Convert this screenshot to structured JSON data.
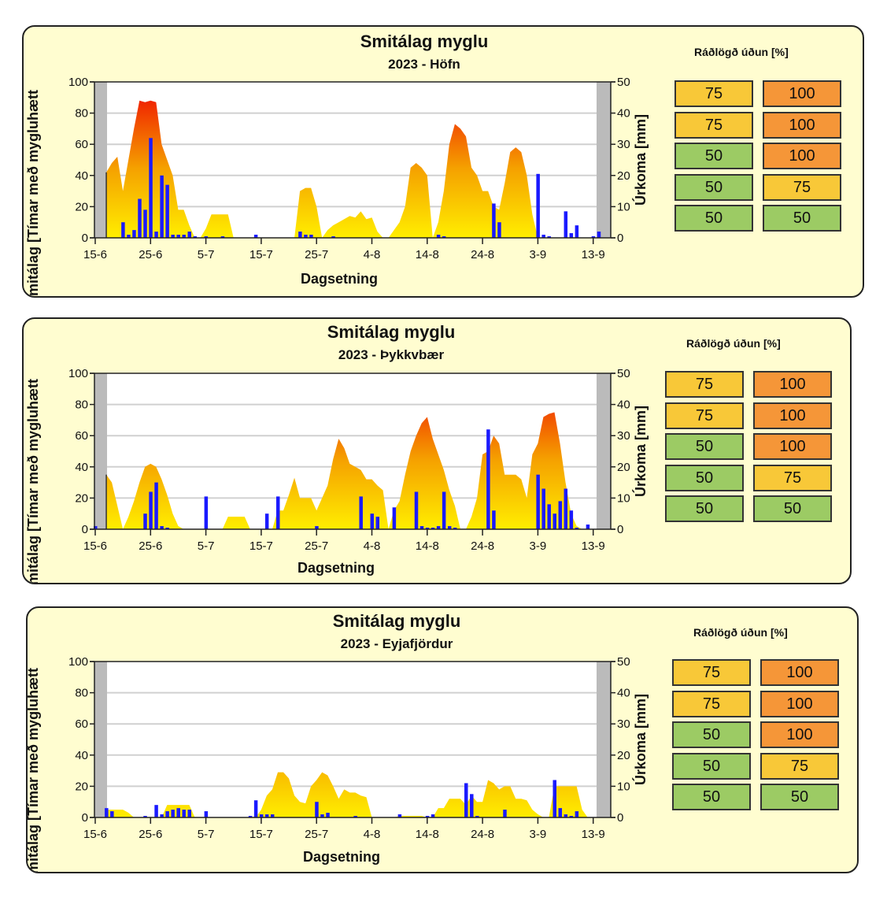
{
  "colors": {
    "panel_bg": "#fffdd0",
    "bar": "#1a1aff",
    "area_low": "#ffee00",
    "area_mid": "#f5a000",
    "area_high": "#f02000",
    "legend_yellow": "#f8c838",
    "legend_orange": "#f59638",
    "legend_green": "#9ccb64",
    "grey_band": "#bbbbbb"
  },
  "legend_title": "Ráðlögð úðun [%]",
  "chart_data": [
    {
      "type": "bar+area",
      "title": "Smitálag myglu",
      "subtitle": "2023 - Höfn",
      "xlabel": "Dagsetning",
      "ylabel": "Smitálag [Tímar með mygluhætt",
      "y2label": "Úrkoma [mm]",
      "ylim": [
        0,
        100
      ],
      "y2lim": [
        0,
        50
      ],
      "yticks": [
        "0",
        "20",
        "40",
        "60",
        "80",
        "100"
      ],
      "y2ticks": [
        "0",
        "10",
        "20",
        "30",
        "40",
        "50"
      ],
      "xticks": [
        "15-6",
        "25-6",
        "5-7",
        "15-7",
        "25-7",
        "4-8",
        "14-8",
        "24-8",
        "3-9",
        "13-9"
      ],
      "x_start_day_label": "15-6",
      "area_series": {
        "name": "Smitálag",
        "days": [
          2,
          3,
          4,
          5,
          6,
          7,
          8,
          9,
          10,
          11,
          12,
          13,
          14,
          15,
          16,
          17,
          18,
          19,
          20,
          21,
          22,
          23,
          24,
          25,
          26,
          27,
          28,
          29,
          30,
          31,
          32,
          33,
          34,
          35,
          36,
          37,
          38,
          39,
          40,
          41,
          42,
          43,
          44,
          45,
          46,
          47,
          48,
          49,
          50,
          51,
          52,
          53,
          54,
          55,
          56,
          57,
          58,
          59,
          60,
          61,
          62,
          63,
          64,
          65,
          66,
          67,
          68,
          69,
          70,
          71,
          72,
          73,
          74,
          75,
          76,
          77,
          78,
          79,
          80,
          81,
          82,
          83,
          84,
          85,
          86,
          87,
          88,
          89
        ],
        "values": [
          42,
          48,
          52,
          30,
          50,
          70,
          88,
          87,
          88,
          87,
          60,
          50,
          40,
          18,
          18,
          8,
          0,
          0,
          6,
          15,
          15,
          15,
          15,
          0,
          0,
          0,
          0,
          0,
          0,
          0,
          0,
          0,
          0,
          0,
          0,
          30,
          32,
          32,
          20,
          0,
          5,
          8,
          10,
          12,
          14,
          13,
          17,
          12,
          13,
          4,
          0,
          0,
          5,
          10,
          20,
          45,
          48,
          45,
          40,
          0,
          10,
          30,
          60,
          73,
          70,
          65,
          45,
          40,
          30,
          30,
          20,
          18,
          35,
          55,
          58,
          55,
          40,
          15,
          0,
          0,
          0,
          0,
          0,
          0,
          0,
          0,
          0,
          0
        ]
      },
      "bar_series": {
        "name": "Úrkoma",
        "days": [
          5,
          6,
          7,
          8,
          9,
          10,
          11,
          12,
          13,
          14,
          15,
          16,
          17,
          18,
          20,
          23,
          29,
          37,
          38,
          39,
          43,
          62,
          63,
          72,
          73,
          74,
          80,
          81,
          82,
          85,
          86,
          87,
          90,
          91
        ],
        "values": [
          5,
          1,
          2.5,
          12.5,
          9,
          32,
          2,
          20,
          17,
          1,
          1,
          1,
          2,
          0.5,
          0.5,
          0.5,
          1,
          2,
          1,
          1,
          0.5,
          1,
          0.5,
          11,
          5,
          0,
          20.5,
          1,
          0.5,
          8.5,
          1.5,
          4,
          0.5,
          2
        ]
      },
      "recommendation": [
        [
          "75",
          "100"
        ],
        [
          "75",
          "100"
        ],
        [
          "50",
          "100"
        ],
        [
          "50",
          "75"
        ],
        [
          "50",
          "50"
        ]
      ]
    },
    {
      "type": "bar+area",
      "title": "Smitálag myglu",
      "subtitle": "2023 - Þykkvbær",
      "xlabel": "Dagsetning",
      "ylabel": "Smitálag [Tímar með mygluhætt",
      "y2label": "Úrkoma [mm]",
      "ylim": [
        0,
        100
      ],
      "y2lim": [
        0,
        50
      ],
      "yticks": [
        "0",
        "20",
        "40",
        "60",
        "80",
        "100"
      ],
      "y2ticks": [
        "0",
        "10",
        "20",
        "30",
        "40",
        "50"
      ],
      "xticks": [
        "15-6",
        "25-6",
        "5-7",
        "15-7",
        "25-7",
        "4-8",
        "14-8",
        "24-8",
        "3-9",
        "13-9"
      ],
      "x_start_day_label": "15-6",
      "area_series": {
        "name": "Smitálag",
        "days": [
          2,
          3,
          4,
          5,
          6,
          7,
          8,
          9,
          10,
          11,
          12,
          13,
          14,
          15,
          16,
          17,
          18,
          19,
          20,
          21,
          22,
          23,
          24,
          25,
          26,
          27,
          28,
          29,
          30,
          31,
          32,
          33,
          34,
          35,
          36,
          37,
          38,
          39,
          40,
          41,
          42,
          43,
          44,
          45,
          46,
          47,
          48,
          49,
          50,
          51,
          52,
          53,
          54,
          55,
          56,
          57,
          58,
          59,
          60,
          61,
          62,
          63,
          64,
          65,
          66,
          67,
          68,
          69,
          70,
          71,
          72,
          73,
          74,
          75,
          76,
          77,
          78,
          79,
          80,
          81,
          82,
          83,
          84,
          85,
          86,
          87,
          88,
          89
        ],
        "values": [
          35,
          30,
          15,
          0,
          8,
          18,
          30,
          40,
          42,
          40,
          32,
          22,
          10,
          2,
          0,
          0,
          0,
          0,
          0,
          0,
          0,
          0,
          8,
          8,
          8,
          8,
          0,
          0,
          0,
          0,
          0,
          12,
          12,
          22,
          33,
          20,
          20,
          20,
          12,
          20,
          28,
          45,
          58,
          52,
          42,
          40,
          38,
          32,
          32,
          28,
          25,
          0,
          12,
          18,
          35,
          50,
          60,
          68,
          72,
          58,
          48,
          38,
          25,
          15,
          0,
          0,
          8,
          20,
          48,
          50,
          60,
          55,
          35,
          35,
          35,
          32,
          20,
          48,
          55,
          72,
          74,
          75,
          55,
          30,
          10,
          2,
          0,
          0
        ]
      },
      "bar_series": {
        "name": "Úrkoma",
        "days": [
          0,
          9,
          10,
          11,
          12,
          13,
          20,
          31,
          33,
          40,
          48,
          50,
          51,
          54,
          58,
          59,
          60,
          61,
          62,
          63,
          64,
          65,
          71,
          72,
          73,
          74,
          80,
          81,
          82,
          83,
          84,
          85,
          86,
          87,
          89
        ],
        "values": [
          1,
          5,
          12,
          15,
          1,
          0.5,
          10.5,
          5,
          10.5,
          1,
          10.5,
          5,
          4,
          7,
          12,
          1,
          0.5,
          0.5,
          1,
          12,
          1,
          0.5,
          32,
          6,
          0,
          0,
          17.5,
          13,
          8,
          5,
          9,
          13,
          6,
          0.5,
          1.5
        ]
      },
      "recommendation": [
        [
          "75",
          "100"
        ],
        [
          "75",
          "100"
        ],
        [
          "50",
          "100"
        ],
        [
          "50",
          "75"
        ],
        [
          "50",
          "50"
        ]
      ]
    },
    {
      "type": "bar+area",
      "title": "Smitálag myglu",
      "subtitle": "2023 - Eyjafjördur",
      "xlabel": "Dagsetning",
      "ylabel": "Smitálag [Tímar með mygluhætt",
      "y2label": "Úrkoma [mm]",
      "ylim": [
        0,
        100
      ],
      "y2lim": [
        0,
        50
      ],
      "yticks": [
        "0",
        "20",
        "40",
        "60",
        "80",
        "100"
      ],
      "y2ticks": [
        "0",
        "10",
        "20",
        "30",
        "40",
        "50"
      ],
      "xticks": [
        "15-6",
        "25-6",
        "5-7",
        "15-7",
        "25-7",
        "4-8",
        "14-8",
        "24-8",
        "3-9",
        "13-9"
      ],
      "x_start_day_label": "15-6",
      "area_series": {
        "name": "Smitálag",
        "days": [
          2,
          3,
          4,
          5,
          6,
          7,
          8,
          9,
          10,
          11,
          12,
          13,
          14,
          15,
          16,
          17,
          18,
          19,
          20,
          21,
          22,
          23,
          24,
          25,
          26,
          27,
          28,
          29,
          30,
          31,
          32,
          33,
          34,
          35,
          36,
          37,
          38,
          39,
          40,
          41,
          42,
          43,
          44,
          45,
          46,
          47,
          48,
          49,
          50,
          51,
          52,
          53,
          54,
          55,
          56,
          57,
          58,
          59,
          60,
          61,
          62,
          63,
          64,
          65,
          66,
          67,
          68,
          69,
          70,
          71,
          72,
          73,
          74,
          75,
          76,
          77,
          78,
          79,
          80,
          81,
          82,
          83,
          84,
          85,
          86,
          87,
          88,
          89
        ],
        "values": [
          5,
          5,
          5,
          5,
          3,
          0,
          0,
          0,
          0,
          0,
          0,
          8,
          8,
          8,
          8,
          8,
          0,
          0,
          0,
          0,
          0,
          0,
          0,
          0,
          0,
          0,
          0,
          0,
          5,
          14,
          18,
          29,
          29,
          25,
          14,
          10,
          9,
          20,
          24,
          29,
          27,
          20,
          12,
          18,
          16,
          16,
          14,
          13,
          0,
          0,
          0,
          0,
          0,
          1,
          1,
          1,
          1,
          1,
          0,
          0,
          6,
          6,
          12,
          12,
          12,
          8,
          14,
          10,
          10,
          24,
          22,
          18,
          20,
          20,
          12,
          12,
          11,
          5,
          2,
          0,
          0,
          20,
          20,
          20,
          20,
          20,
          5,
          0
        ]
      },
      "bar_series": {
        "name": "Úrkoma",
        "days": [
          2,
          3,
          9,
          11,
          12,
          13,
          14,
          15,
          16,
          17,
          20,
          28,
          29,
          30,
          31,
          32,
          40,
          41,
          42,
          47,
          55,
          60,
          61,
          67,
          68,
          69,
          74,
          83,
          84,
          85,
          86,
          87
        ],
        "values": [
          3,
          2,
          0.5,
          4,
          1,
          2,
          2.5,
          3,
          2.5,
          2.5,
          2,
          0.5,
          5.5,
          1,
          1,
          1,
          5,
          1,
          1.5,
          0.5,
          1,
          0.5,
          1,
          11,
          7.5,
          0.5,
          2.5,
          12,
          3,
          1,
          0.5,
          2
        ]
      },
      "recommendation": [
        [
          "75",
          "100"
        ],
        [
          "75",
          "100"
        ],
        [
          "50",
          "100"
        ],
        [
          "50",
          "75"
        ],
        [
          "50",
          "50"
        ]
      ]
    }
  ]
}
